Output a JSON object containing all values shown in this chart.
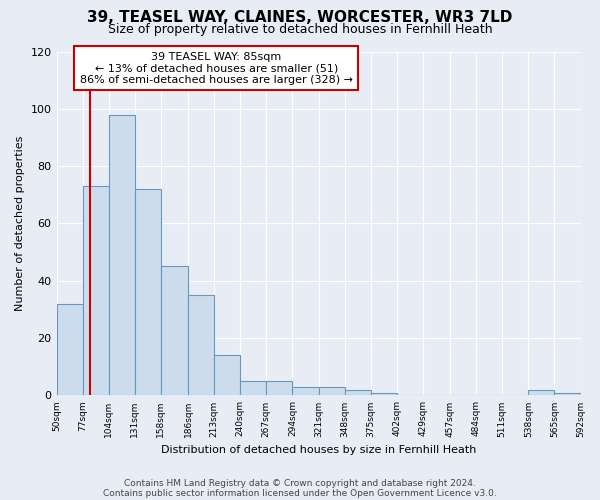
{
  "title": "39, TEASEL WAY, CLAINES, WORCESTER, WR3 7LD",
  "subtitle": "Size of property relative to detached houses in Fernhill Heath",
  "xlabel": "Distribution of detached houses by size in Fernhill Heath",
  "ylabel": "Number of detached properties",
  "bin_edges": [
    50,
    77,
    104,
    131,
    158,
    186,
    213,
    240,
    267,
    294,
    321,
    348,
    375,
    402,
    429,
    457,
    484,
    511,
    538,
    565,
    592
  ],
  "bin_counts": [
    32,
    73,
    98,
    72,
    45,
    35,
    14,
    5,
    5,
    3,
    3,
    2,
    1,
    0,
    0,
    0,
    0,
    0,
    2,
    1
  ],
  "bar_color": "#ccdcec",
  "bar_edge_color": "#6699bb",
  "vline_x": 85,
  "vline_color": "#cc0000",
  "annotation_text": "39 TEASEL WAY: 85sqm\n← 13% of detached houses are smaller (51)\n86% of semi-detached houses are larger (328) →",
  "annotation_box_color": "#ffffff",
  "annotation_box_edge_color": "#cc0000",
  "ylim": [
    0,
    120
  ],
  "yticks": [
    0,
    20,
    40,
    60,
    80,
    100,
    120
  ],
  "tick_labels": [
    "50sqm",
    "77sqm",
    "104sqm",
    "131sqm",
    "158sqm",
    "186sqm",
    "213sqm",
    "240sqm",
    "267sqm",
    "294sqm",
    "321sqm",
    "348sqm",
    "375sqm",
    "402sqm",
    "429sqm",
    "457sqm",
    "484sqm",
    "511sqm",
    "538sqm",
    "565sqm",
    "592sqm"
  ],
  "footer_line1": "Contains HM Land Registry data © Crown copyright and database right 2024.",
  "footer_line2": "Contains public sector information licensed under the Open Government Licence v3.0.",
  "bg_color": "#e8edf5",
  "plot_bg_color": "#e8edf5",
  "title_fontsize": 11,
  "subtitle_fontsize": 9,
  "annotation_fontsize": 8,
  "footer_fontsize": 6.5,
  "ylabel_fontsize": 8,
  "xlabel_fontsize": 8
}
